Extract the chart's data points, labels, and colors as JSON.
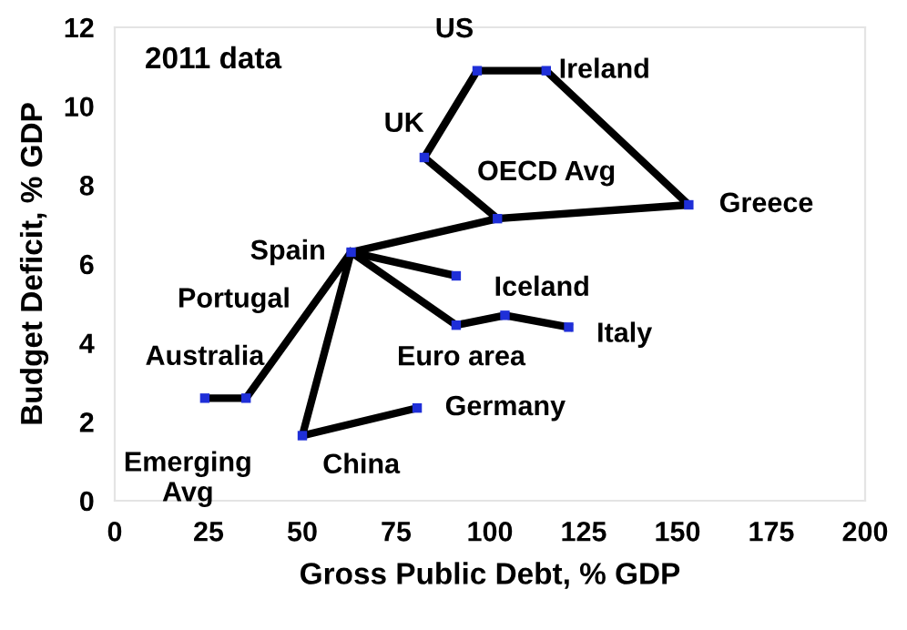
{
  "chart_data": {
    "type": "line",
    "xlabel": "Gross Public Debt, % GDP",
    "ylabel": "Budget Deficit, % GDP",
    "xlim": [
      0,
      200
    ],
    "ylim": [
      0,
      12
    ],
    "xticks": [
      0,
      25,
      50,
      75,
      100,
      125,
      150,
      175,
      200
    ],
    "yticks": [
      0,
      2,
      4,
      6,
      8,
      10,
      12
    ],
    "grid": false,
    "legend": false,
    "marker": "none",
    "line_style": "solid",
    "series": [
      {
        "color": "#000000",
        "x": [
          24,
          35,
          63,
          50,
          80.6
        ],
        "values": [
          2.6,
          2.6,
          6.3,
          1.65,
          2.35
        ]
      },
      {
        "color": "#000000",
        "x": [
          63,
          91
        ],
        "values": [
          6.3,
          5.7
        ]
      },
      {
        "color": "#000000",
        "x": [
          63,
          91,
          104,
          121
        ],
        "values": [
          6.3,
          4.45,
          4.7,
          4.4
        ]
      },
      {
        "color": "#000000",
        "x": [
          63,
          102,
          82.5,
          96.6,
          115,
          153,
          102
        ],
        "values": [
          6.3,
          7.15,
          8.7,
          10.9,
          10.9,
          7.5,
          7.15
        ]
      },
      {
        "type": "scatter",
        "marker": "square",
        "color": "#1f2fd8",
        "x": [
          24,
          35,
          63,
          50,
          80.6,
          91,
          91,
          104,
          121,
          102,
          82.5,
          96.6,
          115,
          153
        ],
        "values": [
          2.6,
          2.6,
          6.3,
          1.65,
          2.35,
          5.7,
          4.45,
          4.7,
          4.4,
          7.15,
          8.7,
          10.9,
          10.9,
          7.5
        ]
      }
    ],
    "annotations": [
      "2011 data",
      {
        "text": "US",
        "x": 96.6,
        "y": 10.9
      },
      {
        "text": "Ireland",
        "x": 115,
        "y": 10.9
      },
      {
        "text": "UK",
        "x": 82.5,
        "y": 8.7
      },
      {
        "text": "OECD Avg",
        "x": 102,
        "y": 7.15
      },
      {
        "text": "Greece",
        "x": 153,
        "y": 7.5
      },
      {
        "text": "Spain",
        "x": 63,
        "y": 6.3
      },
      {
        "text": "Portugal",
        "x": 63,
        "y": 6.3
      },
      {
        "text": "Iceland",
        "x": 91,
        "y": 5.7
      },
      {
        "text": "Euro area",
        "x": 91,
        "y": 4.45
      },
      {
        "text": "Italy",
        "x": 121,
        "y": 4.4
      },
      {
        "text": "Germany",
        "x": 80.6,
        "y": 2.35
      },
      {
        "text": "China",
        "x": 50,
        "y": 1.65
      },
      {
        "text": "Australia",
        "x": 24,
        "y": 2.6
      },
      {
        "text": "Emerging\nAvg",
        "x": 35,
        "y": 2.6
      }
    ]
  }
}
